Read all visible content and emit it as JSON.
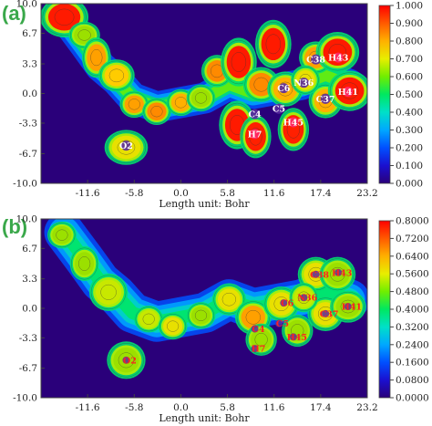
{
  "chart_data": [
    {
      "type": "heatmap",
      "panel_label": "(a)",
      "xlabel": "Length unit: Bohr",
      "xticks": [
        "-11.6",
        "-5.8",
        "0.0",
        "5.8",
        "11.6",
        "17.4",
        "23.2"
      ],
      "yticks": [
        "10.0",
        "6.7",
        "3.3",
        "0.0",
        "-3.3",
        "-6.7",
        "-10.0"
      ],
      "xlim": [
        -17.4,
        23.2
      ],
      "ylim": [
        -10.0,
        10.0
      ],
      "colorbar": {
        "range": [
          0.0,
          1.0
        ],
        "ticks": [
          "1.000",
          "0.900",
          "0.800",
          "0.700",
          "0.600",
          "0.500",
          "0.400",
          "0.300",
          "0.200",
          "0.100",
          "0.000"
        ]
      },
      "atom_labels": [
        {
          "text": "O2",
          "x": -6.8,
          "y": -5.8
        },
        {
          "text": "C38",
          "x": 16.8,
          "y": 3.8
        },
        {
          "text": "H43",
          "x": 19.6,
          "y": 4.0
        },
        {
          "text": "C6",
          "x": 12.8,
          "y": 0.6
        },
        {
          "text": "N36",
          "x": 15.3,
          "y": 1.2
        },
        {
          "text": "H41",
          "x": 20.8,
          "y": 0.2
        },
        {
          "text": "C37",
          "x": 18.0,
          "y": -0.6
        },
        {
          "text": "C4",
          "x": 9.2,
          "y": -2.3
        },
        {
          "text": "C5",
          "x": 12.2,
          "y": -1.7
        },
        {
          "text": "H7",
          "x": 9.2,
          "y": -4.5
        },
        {
          "text": "H45",
          "x": 14.0,
          "y": -3.2
        }
      ]
    },
    {
      "type": "heatmap",
      "panel_label": "(b)",
      "xlabel": "Length unit: Bohr",
      "xticks": [
        "-11.6",
        "-5.8",
        "0.0",
        "5.8",
        "11.6",
        "17.4",
        "23.2"
      ],
      "yticks": [
        "10.0",
        "6.7",
        "3.3",
        "0.0",
        "-3.3",
        "-6.7",
        "-10.0"
      ],
      "xlim": [
        -17.4,
        23.2
      ],
      "ylim": [
        -10.0,
        10.0
      ],
      "colorbar": {
        "range": [
          0.0,
          0.8
        ],
        "ticks": [
          "0.8000",
          "0.7200",
          "0.6400",
          "0.5600",
          "0.4800",
          "0.4000",
          "0.3200",
          "0.2400",
          "0.1600",
          "0.0800",
          "0.0000"
        ]
      },
      "atom_labels": [
        {
          "text": "O2",
          "x": -6.8,
          "y": -5.8
        },
        {
          "text": "C38",
          "x": 16.8,
          "y": 3.8
        },
        {
          "text": "H43",
          "x": 19.6,
          "y": 4.0
        },
        {
          "text": "C6",
          "x": 12.8,
          "y": 0.6
        },
        {
          "text": "N36",
          "x": 15.3,
          "y": 1.2
        },
        {
          "text": "H41",
          "x": 20.8,
          "y": 0.2
        },
        {
          "text": "C37",
          "x": 18.0,
          "y": -0.6
        },
        {
          "text": "C4",
          "x": 9.2,
          "y": -2.3
        },
        {
          "text": "C5",
          "x": 12.2,
          "y": -1.7
        },
        {
          "text": "H7",
          "x": 9.2,
          "y": -4.5
        },
        {
          "text": "H45",
          "x": 14.0,
          "y": -3.2
        }
      ]
    }
  ]
}
